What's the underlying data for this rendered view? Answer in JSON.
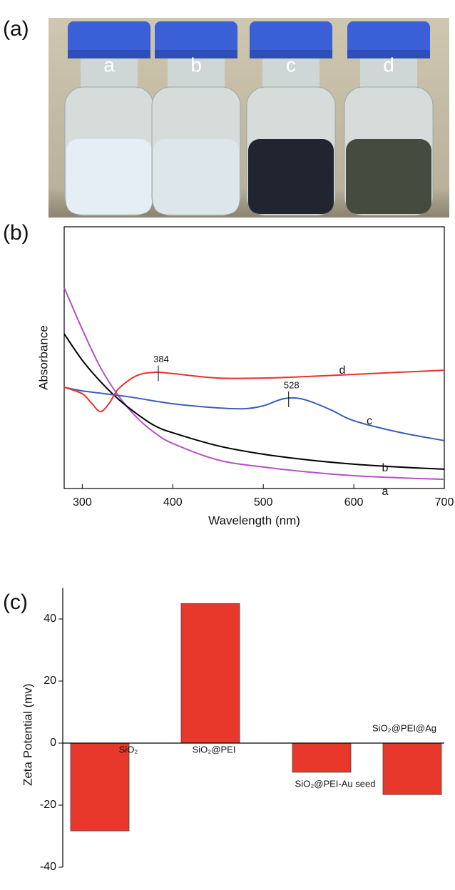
{
  "photo": {
    "panel_label": "(a)",
    "bottle_labels": [
      "a",
      "b",
      "c",
      "d"
    ]
  },
  "chart_data": [
    {
      "type": "line",
      "panel_label": "(b)",
      "x_label": "Wavelength (nm)",
      "y_label": "Absorbance",
      "xlim": [
        280,
        700
      ],
      "xticks": [
        300,
        400,
        500,
        600,
        700
      ],
      "ylim": [
        0,
        100
      ],
      "series": [
        {
          "name": "a",
          "color": "#b452c2",
          "x": [
            280,
            300,
            320,
            340,
            360,
            380,
            400,
            450,
            500,
            550,
            600,
            650,
            700
          ],
          "values": [
            76.8,
            60.8,
            46.3,
            35.4,
            27.2,
            21.3,
            17.2,
            10.9,
            8.2,
            6.3,
            4.9,
            4.1,
            3.5
          ]
        },
        {
          "name": "b",
          "color": "#000000",
          "x": [
            280,
            300,
            320,
            340,
            360,
            380,
            400,
            450,
            500,
            550,
            600,
            650,
            700
          ],
          "values": [
            59.1,
            49.0,
            40.9,
            34.1,
            28.6,
            24.0,
            21.3,
            16.3,
            13.1,
            10.9,
            9.3,
            8.2,
            7.4
          ]
        },
        {
          "name": "c",
          "color": "#3a5fb5",
          "peak": 528,
          "x": [
            280,
            300,
            350,
            400,
            450,
            480,
            500,
            520,
            535,
            550,
            575,
            600,
            650,
            700
          ],
          "values": [
            38.7,
            37.3,
            35.1,
            32.4,
            30.8,
            30.5,
            31.6,
            34.1,
            34.6,
            33.5,
            30.0,
            25.9,
            21.5,
            18.3
          ]
        },
        {
          "name": "d",
          "color": "#e8322a",
          "peak": 384,
          "x": [
            280,
            300,
            310,
            320,
            330,
            340,
            360,
            380,
            400,
            450,
            500,
            550,
            600,
            650,
            700
          ],
          "values": [
            38.7,
            36.2,
            32.7,
            29.4,
            32.7,
            38.1,
            43.1,
            44.4,
            43.9,
            42.2,
            42.2,
            42.8,
            43.6,
            44.4,
            45.2
          ]
        }
      ]
    },
    {
      "type": "bar",
      "panel_label": "(c)",
      "y_label": "Zeta Potential (mv)",
      "categories": [
        "SiO₂",
        "SiO₂@PEI",
        "SiO₂@PEI-Au seed",
        "SiO₂@PEI@Ag"
      ],
      "values": [
        -28.3,
        45,
        -9.4,
        -16.6
      ],
      "color": "#e8382c",
      "ylim": [
        -40,
        50
      ],
      "yticks": [
        -40,
        -20,
        0,
        20,
        40
      ]
    }
  ]
}
